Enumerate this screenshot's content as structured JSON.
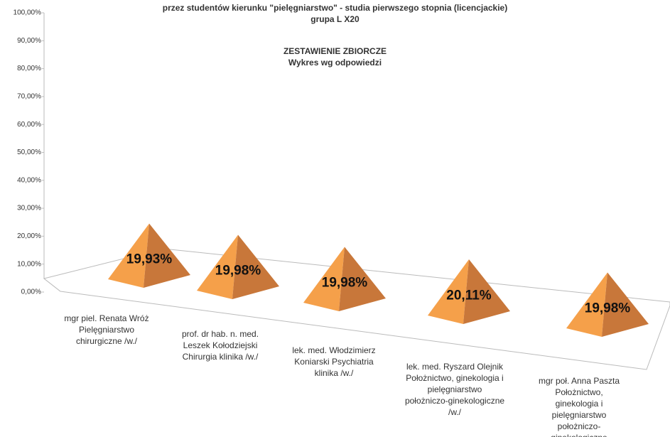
{
  "chart_data": {
    "type": "pyramid",
    "title": "przez studentów kierunku \"pielęgniarstwo\" - studia pierwszego stopnia (licencjackie)\ngrupa L X20",
    "subtitle": "ZESTAWIENIE ZBIORCZE\nWykres wg odpowiedzi",
    "categories": [
      "mgr piel. Renata Wróż\nPielęgniarstwo\nchirurgiczne /w./",
      "prof. dr hab. n. med.\nLeszek Kołodziejski\nChirurgia klinika /w./",
      "lek. med. Włodzimierz\nKoniarski Psychiatria\nklinika /w./",
      "lek. med. Ryszard Olejnik\nPołożnictwo, ginekologia i\npielęgniarstwo\npołożniczo-ginekologiczne\n/w./",
      "mgr poł. Anna Paszta\nPołożnictwo, ginekologia i\npielęgniarstwo\npołożniczo-ginekologiczne\n/w./"
    ],
    "values": [
      19.93,
      19.98,
      19.98,
      20.11,
      19.98
    ],
    "value_labels": [
      "19,93%",
      "19,98%",
      "19,98%",
      "20,11%",
      "19,98%"
    ],
    "color": "#f5a04a",
    "ylim": [
      0,
      100
    ],
    "yticks": [
      {
        "value": 0,
        "label": "0,00%"
      },
      {
        "value": 10,
        "label": "10,00%"
      },
      {
        "value": 20,
        "label": "20,00%"
      },
      {
        "value": 30,
        "label": "30,00%"
      },
      {
        "value": 40,
        "label": "40,00%"
      },
      {
        "value": 50,
        "label": "50,00%"
      },
      {
        "value": 60,
        "label": "60,00%"
      },
      {
        "value": 70,
        "label": "70,00%"
      },
      {
        "value": 80,
        "label": "80,00%"
      },
      {
        "value": 90,
        "label": "90,00%"
      },
      {
        "value": 100,
        "label": "100,00%"
      }
    ]
  }
}
